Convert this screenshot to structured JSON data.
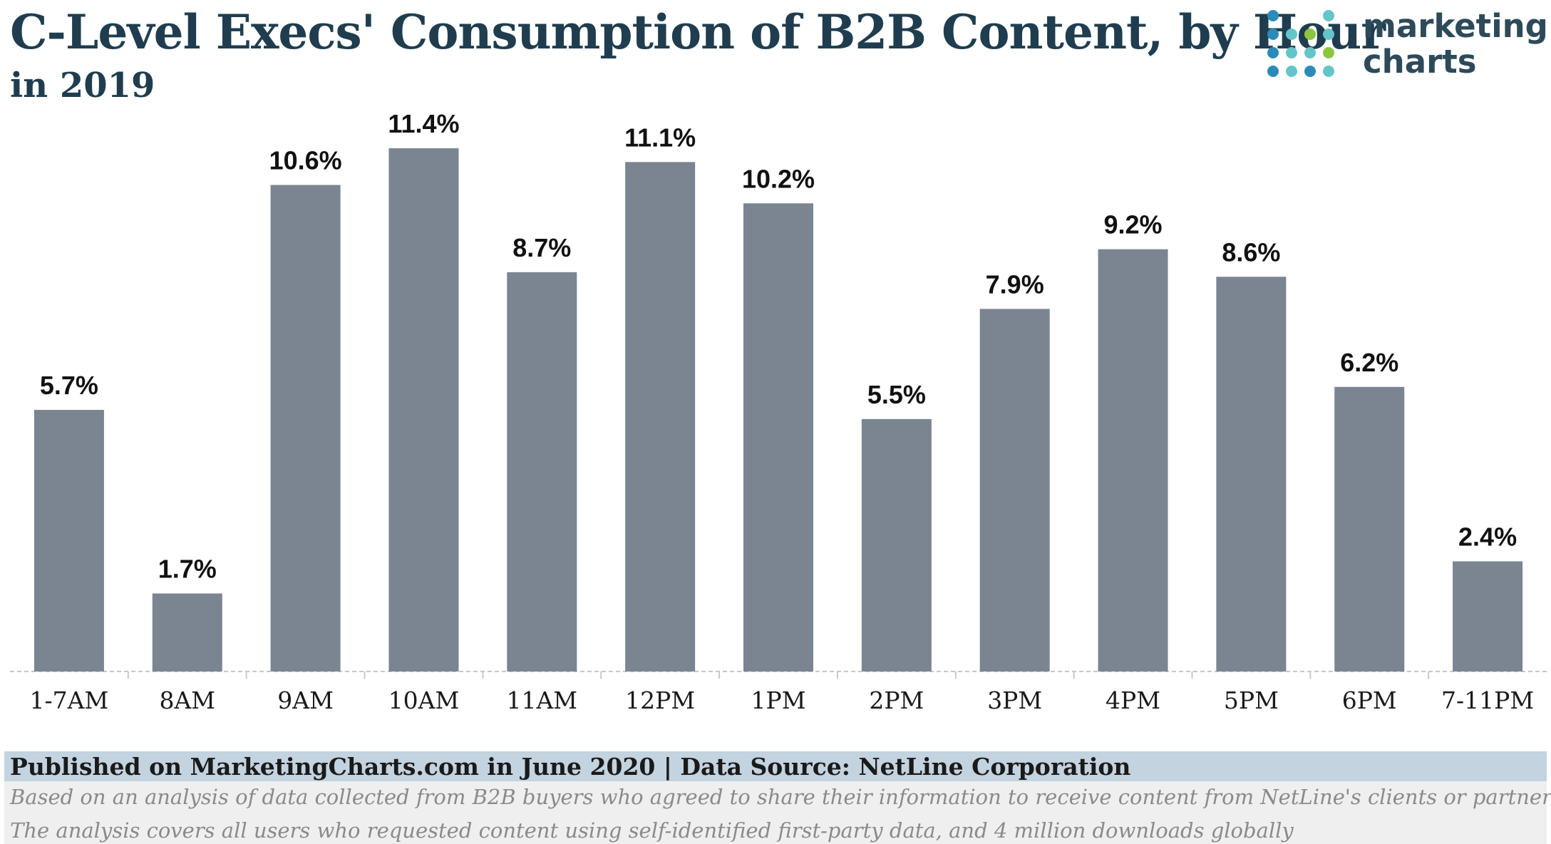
{
  "header": {
    "title": "C-Level Execs' Consumption of B2B Content, by Hour",
    "subtitle": "in 2019"
  },
  "logo": {
    "line1": "marketing",
    "line2": "charts",
    "dot_colors": [
      "#2b8bb8",
      "#64c5c9",
      "#8cc63f"
    ]
  },
  "colors": {
    "bar": "#7a8591",
    "label": "#111111",
    "title": "#1f3d4f",
    "axis": "#c8c8c8",
    "footer_band": "#c3d3df"
  },
  "chart_data": {
    "type": "bar",
    "categories": [
      "1-7AM",
      "8AM",
      "9AM",
      "10AM",
      "11AM",
      "12PM",
      "1PM",
      "2PM",
      "3PM",
      "4PM",
      "5PM",
      "6PM",
      "7-11PM"
    ],
    "values": [
      5.7,
      1.7,
      10.6,
      11.4,
      8.7,
      11.1,
      10.2,
      5.5,
      7.9,
      9.2,
      8.6,
      6.2,
      2.4
    ],
    "value_labels": [
      "5.7%",
      "1.7%",
      "10.6%",
      "11.4%",
      "8.7%",
      "11.1%",
      "10.2%",
      "5.5%",
      "7.9%",
      "9.2%",
      "8.6%",
      "6.2%",
      "2.4%"
    ],
    "unit": "%",
    "ylim": [
      0,
      11.4
    ],
    "grid": false,
    "legend": "none"
  },
  "footer": {
    "published": "Published on MarketingCharts.com in June 2020 | Data Source: NetLine Corporation",
    "note1": "Based on an analysis of data collected from B2B buyers who agreed to share their information to receive content from NetLine's clients or partners",
    "note2": "The analysis covers all users who requested content using self-identified first-party data, and 4 million downloads globally"
  }
}
